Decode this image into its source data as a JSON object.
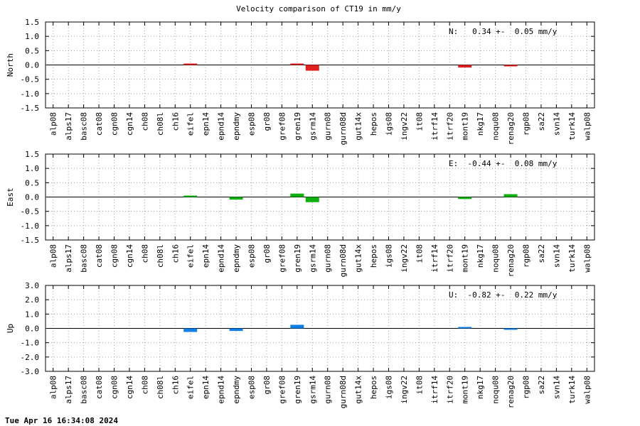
{
  "title": "Velocity comparison of CT19 in mm/y",
  "timestamp": "Tue Apr 16 16:34:08 2024",
  "chart_data": {
    "type": "bar",
    "title": "Velocity comparison of CT19 in mm/y",
    "categories": [
      "alp08",
      "alps17",
      "basc08",
      "cat08",
      "cgn08",
      "cgn14",
      "ch08",
      "ch08l",
      "ch16",
      "eifel",
      "epn14",
      "epnd14",
      "epndmy",
      "esp08",
      "gr08",
      "gref08",
      "gren19",
      "gsrm14",
      "gurn08",
      "gurn08d",
      "gut14x",
      "hepos",
      "igs08",
      "ingv22",
      "it08",
      "itrf14",
      "itrf20",
      "mont19",
      "nkg17",
      "noqu08",
      "renag20",
      "rgp08",
      "sa22",
      "svn14",
      "turk14",
      "walp08"
    ],
    "panels": [
      {
        "ylabel": "North",
        "ylim": [
          -1.5,
          1.5
        ],
        "yticks": [
          "1.5",
          "1.0",
          "0.5",
          "0.0",
          "-0.5",
          "-1.0",
          "-1.5"
        ],
        "ytick_values": [
          1.5,
          1.0,
          0.5,
          0.0,
          -0.5,
          -1.0,
          -1.5
        ],
        "grid": true,
        "color": "#e02020",
        "stats": "N:   0.34 +-  0.05 mm/y",
        "values": [
          null,
          null,
          null,
          null,
          null,
          null,
          null,
          null,
          null,
          0.02,
          null,
          null,
          null,
          null,
          null,
          null,
          0.02,
          -0.2,
          null,
          null,
          null,
          null,
          null,
          null,
          null,
          null,
          null,
          -0.09,
          null,
          null,
          -0.04,
          null,
          null,
          null,
          null,
          null
        ]
      },
      {
        "ylabel": "East",
        "ylim": [
          -1.5,
          1.5
        ],
        "yticks": [
          "1.5",
          "1.0",
          "0.5",
          "0.0",
          "-0.5",
          "-1.0",
          "-1.5"
        ],
        "ytick_values": [
          1.5,
          1.0,
          0.5,
          0.0,
          -0.5,
          -1.0,
          -1.5
        ],
        "grid": true,
        "color": "#10b010",
        "stats": "E:  -0.44 +-  0.08 mm/y",
        "values": [
          null,
          null,
          null,
          null,
          null,
          null,
          null,
          null,
          null,
          0.02,
          null,
          null,
          -0.09,
          null,
          null,
          null,
          0.12,
          -0.18,
          null,
          null,
          null,
          null,
          null,
          null,
          null,
          null,
          null,
          -0.07,
          null,
          null,
          0.1,
          null,
          null,
          null,
          null,
          null
        ]
      },
      {
        "ylabel": "Up",
        "ylim": [
          -3.0,
          3.0
        ],
        "yticks": [
          "3.0",
          "2.0",
          "1.0",
          "0.0",
          "-1.0",
          "-2.0",
          "-3.0"
        ],
        "ytick_values": [
          3.0,
          2.0,
          1.0,
          0.0,
          -1.0,
          -2.0,
          -3.0
        ],
        "grid": true,
        "color": "#1080e8",
        "stats": "U:  -0.82 +-  0.22 mm/y",
        "values": [
          null,
          null,
          null,
          null,
          null,
          null,
          null,
          null,
          null,
          -0.25,
          null,
          null,
          -0.18,
          null,
          null,
          null,
          0.25,
          null,
          null,
          null,
          null,
          null,
          null,
          null,
          null,
          null,
          null,
          0.07,
          null,
          null,
          -0.1,
          null,
          null,
          null,
          null,
          null
        ]
      }
    ]
  }
}
